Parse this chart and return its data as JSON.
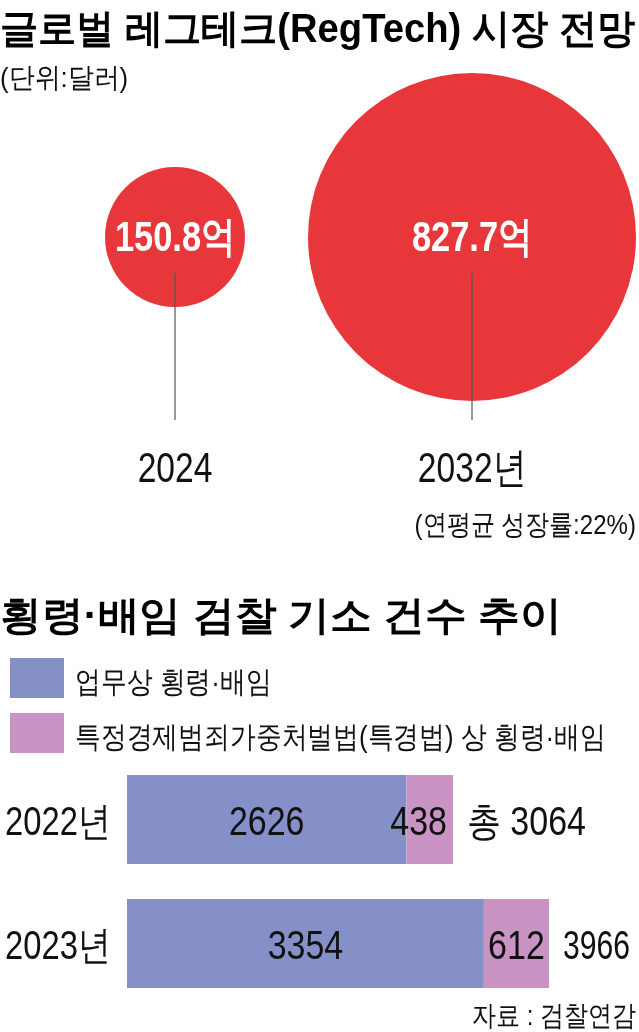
{
  "chart_data": [
    {
      "type": "other",
      "title": "글로벌 레그테크(RegTech) 시장 전망",
      "subtitle": "(단위:달러)",
      "categories": [
        "2024",
        "2032년"
      ],
      "values": [
        150.8,
        827.7
      ],
      "value_labels": [
        "150.8억",
        "827.7억"
      ],
      "color": "#e8373a",
      "annotations": [
        "(연평균 성장률:22%)"
      ]
    },
    {
      "type": "bar",
      "orientation": "horizontal",
      "stacked": true,
      "title": "횡령·배임 검찰 기소 건수 추이",
      "categories": [
        "2022년",
        "2023년"
      ],
      "series": [
        {
          "name": "업무상 횡령·배임",
          "color": "#8590c8",
          "values": [
            2626,
            3354
          ]
        },
        {
          "name": "특정경제범죄가중처벌법(특경법) 상 횡령·배임",
          "color": "#c994c3",
          "values": [
            438,
            612
          ]
        }
      ],
      "data_labels": true,
      "totals": [
        "총 3064",
        "3966"
      ],
      "legend": "top left",
      "annotations": [
        "자료 : 검찰연감"
      ]
    }
  ]
}
